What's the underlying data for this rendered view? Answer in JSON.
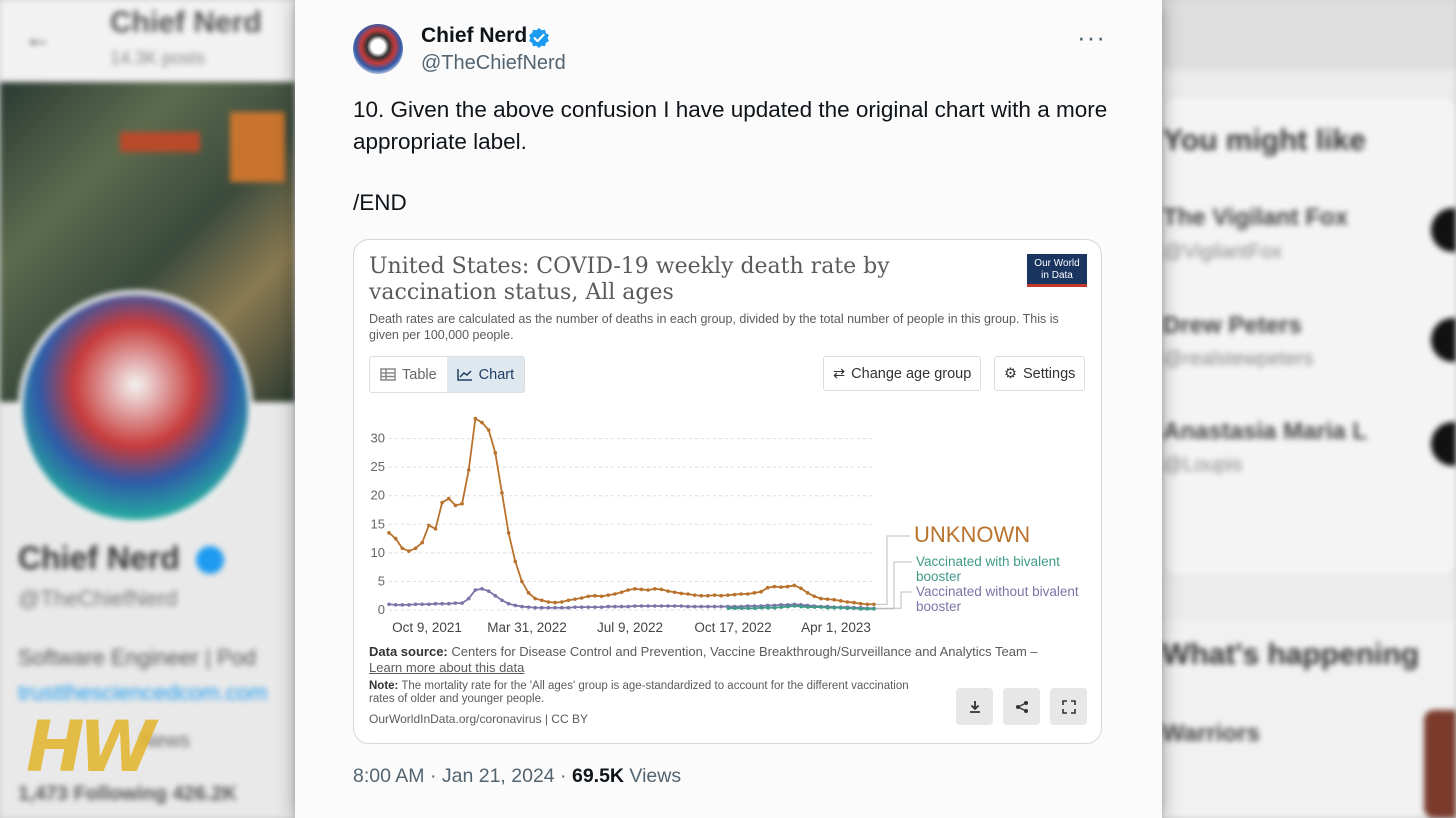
{
  "background": {
    "name": "Chief Nerd",
    "posts": "14.3K posts",
    "handle": "@TheChiefNerd",
    "bio": "Software Engineer | Pod",
    "link": "trustthesciencedcom.com",
    "meta": "News",
    "following": "1,473 Following  426.2K",
    "right_heading_1": "You might like",
    "right_people": [
      {
        "name": "The Vigilant Fox",
        "handle": "@VigilantFox"
      },
      {
        "name": "Drew Peters",
        "handle": "@realstewpeters"
      },
      {
        "name": "Anastasia Maria L",
        "handle": "@Loupis"
      }
    ],
    "right_heading_2": "What's happening",
    "right_trend": "Warriors"
  },
  "watermark": "HW",
  "tweet": {
    "author_name": "Chief Nerd",
    "author_handle": "@TheChiefNerd",
    "more_label": "···",
    "text": "10. Given the above confusion I have updated the original chart with a more appropriate label.",
    "end_text": "/END",
    "timestamp": "8:00 AM · Jan 21, 2024 · ",
    "views_count": "69.5K",
    "views_label": " Views"
  },
  "card": {
    "title": "United States: COVID-19 weekly death rate by vaccination status, All ages",
    "subtitle": "Death rates are calculated as the number of deaths in each group, divided by the total number of people in this group. This is given per 100,000 people.",
    "logo_line1": "Our World",
    "logo_line2": "in Data",
    "tab_table": "Table",
    "tab_chart": "Chart",
    "change_age_label": "Change age group",
    "settings_label": "Settings",
    "source_label": "Data source:",
    "source_text": " Centers for Disease Control and Prevention, Vaccine Breakthrough/Surveillance and Analytics Team – ",
    "source_link": "Learn more about this data",
    "note_label": "Note:",
    "note_text": " The mortality rate for the 'All ages' group is age-standardized to account for the different vaccination rates of older and younger people.",
    "url_text": "OurWorldInData.org/coronavirus | CC BY"
  },
  "chart_data": {
    "type": "line",
    "title": "United States: COVID-19 weekly death rate by vaccination status, All ages",
    "ylim": [
      0,
      35
    ],
    "yticks": [
      "0",
      "5",
      "10",
      "15",
      "20",
      "25",
      "30"
    ],
    "xtick_labels": [
      "Oct 9, 2021",
      "Mar 31, 2022",
      "Jul 9, 2022",
      "Oct 17, 2022",
      "Apr 1, 2023"
    ],
    "grid": true,
    "legend_position": "right",
    "series": [
      {
        "name": "UNKNOWN",
        "color": "#b8722c",
        "values": [
          13.5,
          12.5,
          10.8,
          10.3,
          10.8,
          11.8,
          14.8,
          14.2,
          18.8,
          19.5,
          18.3,
          18.6,
          24.5,
          33.5,
          32.8,
          31.5,
          27.5,
          20.5,
          13.5,
          8.5,
          5,
          3,
          2,
          1.7,
          1.4,
          1.3,
          1.4,
          1.7,
          1.9,
          2.1,
          2.4,
          2.5,
          2.4,
          2.6,
          2.8,
          3.1,
          3.5,
          3.7,
          3.6,
          3.5,
          3.7,
          3.6,
          3.3,
          3.1,
          2.9,
          2.8,
          2.6,
          2.5,
          2.5,
          2.6,
          2.5,
          2.6,
          2.7,
          2.8,
          2.8,
          3,
          3.2,
          3.9,
          4.1,
          4,
          4.1,
          4.3,
          3.8,
          3,
          2.4,
          2,
          1.9,
          1.8,
          1.6,
          1.4,
          1.3,
          1.1,
          1,
          1
        ]
      },
      {
        "name": "Vaccinated with bivalent booster",
        "color": "#3f9a88",
        "values": [
          0.3,
          0.3,
          0.3,
          0.3,
          0.3,
          0.4,
          0.4,
          0.4,
          0.5,
          0.6,
          0.7,
          0.6,
          0.5,
          0.5,
          0.5,
          0.4,
          0.4,
          0.4,
          0.3,
          0.3,
          0.2,
          0.2,
          0.2
        ]
      },
      {
        "name": "Vaccinated without bivalent booster",
        "color": "#7a74a8",
        "values": [
          1,
          0.9,
          0.9,
          0.9,
          1,
          1,
          1,
          1.1,
          1.1,
          1.1,
          1.2,
          1.2,
          2,
          3.5,
          3.7,
          3.3,
          2.5,
          1.7,
          1.1,
          0.8,
          0.6,
          0.5,
          0.4,
          0.4,
          0.4,
          0.4,
          0.4,
          0.4,
          0.5,
          0.5,
          0.5,
          0.5,
          0.5,
          0.6,
          0.6,
          0.6,
          0.6,
          0.7,
          0.7,
          0.7,
          0.7,
          0.7,
          0.7,
          0.7,
          0.7,
          0.6,
          0.6,
          0.6,
          0.6,
          0.6,
          0.6,
          0.6,
          0.6,
          0.6,
          0.7,
          0.7,
          0.7,
          0.8,
          0.8,
          0.9,
          0.9,
          1,
          0.9,
          0.8,
          0.7,
          0.6,
          0.6,
          0.5,
          0.5,
          0.5,
          0.4,
          0.4,
          0.3,
          0.3
        ]
      }
    ]
  },
  "colors": {
    "verified": "#1d9bf0",
    "owid_navy": "#1a3560",
    "owid_red": "#c0392b"
  }
}
